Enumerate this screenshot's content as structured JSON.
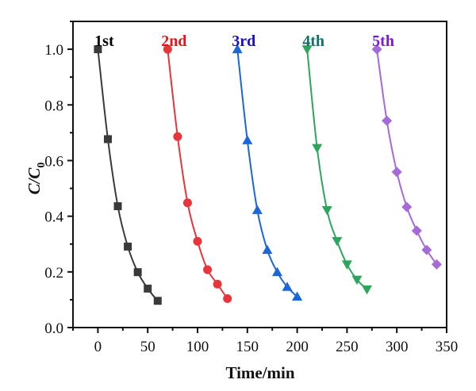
{
  "chart_data": {
    "type": "line",
    "title": "",
    "xlabel": "Time/min",
    "ylabel": "C/C",
    "ylabel_subscript": "0",
    "xlim": [
      -25,
      350
    ],
    "ylim": [
      0.0,
      1.1
    ],
    "xticks": [
      0,
      50,
      100,
      150,
      200,
      250,
      300,
      350
    ],
    "xtick_labels": [
      "0",
      "50",
      "100",
      "150",
      "200",
      "250",
      "300",
      "350"
    ],
    "x_minor_step": 25,
    "yticks": [
      0.0,
      0.2,
      0.4,
      0.6,
      0.8,
      1.0
    ],
    "ytick_labels": [
      "0.0",
      "0.2",
      "0.4",
      "0.6",
      "0.8",
      "1.0"
    ],
    "y_minor_step": 0.1,
    "grid": false,
    "legend": "inline labels above each series",
    "series": [
      {
        "name": "1st",
        "label_color": "#000000",
        "color": "#3a3a3a",
        "marker": "square",
        "x": [
          0,
          10,
          20,
          30,
          40,
          50,
          60
        ],
        "y": [
          1.0,
          0.677,
          0.436,
          0.291,
          0.199,
          0.14,
          0.096
        ]
      },
      {
        "name": "2nd",
        "label_color": "#e8141c",
        "color": "#e8353b",
        "marker": "circle",
        "x": [
          70,
          80,
          90,
          100,
          110,
          120,
          130
        ],
        "y": [
          1.0,
          0.686,
          0.448,
          0.31,
          0.208,
          0.156,
          0.104
        ]
      },
      {
        "name": "3rd",
        "label_color": "#1a10c8",
        "color": "#1c67d8",
        "marker": "triangle-up",
        "x": [
          140,
          150,
          160,
          170,
          180,
          190,
          200
        ],
        "y": [
          1.0,
          0.673,
          0.422,
          0.279,
          0.199,
          0.146,
          0.111
        ]
      },
      {
        "name": "4th",
        "label_color": "#0f7068",
        "color": "#2ea55c",
        "marker": "triangle-down",
        "x": [
          210,
          220,
          230,
          240,
          250,
          260,
          270
        ],
        "y": [
          1.0,
          0.645,
          0.422,
          0.311,
          0.227,
          0.172,
          0.137
        ]
      },
      {
        "name": "5th",
        "label_color": "#7a1ad8",
        "color": "#a46ad8",
        "marker": "diamond",
        "x": [
          280,
          290,
          300,
          310,
          320,
          330,
          340
        ],
        "y": [
          1.0,
          0.743,
          0.559,
          0.433,
          0.348,
          0.279,
          0.227
        ]
      }
    ]
  }
}
